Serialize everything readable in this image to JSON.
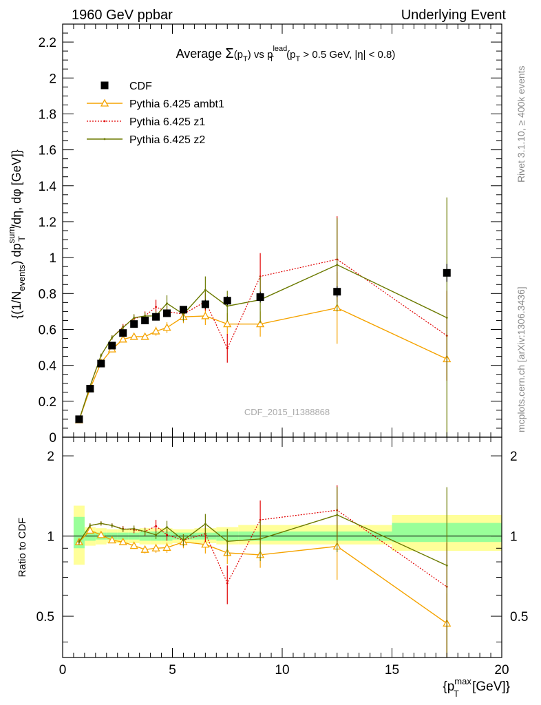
{
  "header": {
    "left": "1960 GeV ppbar",
    "right": "Underlying Event"
  },
  "side_labels": {
    "rivet": "Rivet 3.1.10, ≥ 400k events",
    "mcplots": "mcplots.cern.ch [arXiv:1306.3436]"
  },
  "watermark": "CDF_2015_I1388868",
  "colors": {
    "cdf": "#000000",
    "ambt1": "#f5a300",
    "z1": "#e00000",
    "z2": "#6b7a00",
    "band_inner": "#99ff99",
    "band_outer": "#ffff99"
  },
  "chart_data": [
    {
      "id": "main",
      "type": "scatter",
      "title": "Average Σ(p_T) vs p_T^lead (p_T > 0.5 GeV, |η| < 0.8)",
      "title_parts": {
        "pre": "Average ",
        "sigma": "Σ",
        "open": "(p",
        "sub_t": "T",
        "close": ")",
        "vs": " vs p",
        "sup_lead": "lead",
        "sub_t2": "T",
        "tail": " (p",
        "sub_t3": "T",
        "cuts": " > 0.5 GeV, |η| < 0.8)"
      },
      "ylabel": "{(1/N_events) dp_T^sum/dη, dφ [GeV]}",
      "ylabel_parts": {
        "a": "{(1/N",
        "sub_events": "events",
        "b": ") dp",
        "sup_sum": "sum",
        "sub_t": "T",
        "c": "/dη, dφ [GeV]}"
      },
      "xlim": [
        0,
        20
      ],
      "ylim": [
        0,
        2.3
      ],
      "yticks": [
        0,
        0.2,
        0.4,
        0.6,
        0.8,
        1,
        1.2,
        1.4,
        1.6,
        1.8,
        2,
        2.2
      ],
      "ytick_labels": [
        "0",
        "0.2",
        "0.4",
        "0.6",
        "0.8",
        "1",
        "1.2",
        "1.4",
        "1.6",
        "1.8",
        "2",
        "2.2"
      ],
      "legend_position": "top-left",
      "series": [
        {
          "name": "CDF",
          "style": "data",
          "x": [
            0.75,
            1.25,
            1.75,
            2.25,
            2.75,
            3.25,
            3.75,
            4.25,
            4.75,
            5.5,
            6.5,
            7.5,
            9.0,
            12.5,
            17.5
          ],
          "y": [
            0.1,
            0.27,
            0.41,
            0.51,
            0.58,
            0.63,
            0.65,
            0.67,
            0.69,
            0.71,
            0.74,
            0.76,
            0.78,
            0.81,
            0.915
          ],
          "yerr": [
            0.005,
            0.008,
            0.01,
            0.012,
            0.012,
            0.015,
            0.015,
            0.015,
            0.018,
            0.02,
            0.025,
            0.025,
            0.03,
            0.03,
            0.05
          ]
        },
        {
          "name": "Pythia 6.425 ambt1",
          "style": "ambt1",
          "x": [
            0.75,
            1.25,
            1.75,
            2.25,
            2.75,
            3.25,
            3.75,
            4.25,
            4.75,
            5.5,
            6.5,
            7.5,
            9.0,
            12.5,
            17.5
          ],
          "y": [
            0.095,
            0.27,
            0.415,
            0.49,
            0.545,
            0.56,
            0.56,
            0.59,
            0.61,
            0.67,
            0.675,
            0.63,
            0.63,
            0.72,
            0.435
          ],
          "yerr": [
            0.004,
            0.005,
            0.01,
            0.015,
            0.015,
            0.015,
            0.015,
            0.025,
            0.03,
            0.035,
            0.05,
            0.06,
            0.07,
            0.2,
            0.12
          ]
        },
        {
          "name": "Pythia 6.425 z1",
          "style": "z1",
          "x": [
            0.75,
            1.25,
            1.75,
            2.25,
            2.75,
            3.25,
            3.75,
            4.25,
            4.75,
            5.5,
            6.5,
            7.5,
            9.0,
            12.5,
            17.5
          ],
          "y": [
            0.095,
            0.285,
            0.455,
            0.555,
            0.615,
            0.66,
            0.675,
            0.725,
            0.7,
            0.685,
            0.755,
            0.495,
            0.895,
            0.99,
            0.565
          ],
          "yerr": [
            0.004,
            0.006,
            0.01,
            0.012,
            0.015,
            0.02,
            0.025,
            0.04,
            0.03,
            0.035,
            0.05,
            0.08,
            0.13,
            0.24,
            0.25
          ]
        },
        {
          "name": "Pythia 6.425 z2",
          "style": "z2",
          "x": [
            0.75,
            1.25,
            1.75,
            2.25,
            2.75,
            3.25,
            3.75,
            4.25,
            4.75,
            5.5,
            6.5,
            7.5,
            9.0,
            12.5,
            17.5
          ],
          "y": [
            0.095,
            0.285,
            0.455,
            0.555,
            0.61,
            0.665,
            0.675,
            0.675,
            0.745,
            0.685,
            0.82,
            0.73,
            0.765,
            0.96,
            0.665
          ],
          "yerr": [
            0.004,
            0.006,
            0.01,
            0.012,
            0.015,
            0.02,
            0.02,
            0.025,
            0.045,
            0.04,
            0.075,
            0.085,
            0.13,
            0.26,
            0.67
          ]
        }
      ]
    },
    {
      "id": "ratio",
      "type": "scatter",
      "ylabel": "Ratio to CDF",
      "xlabel": "{p_T^max [GeV]}",
      "xlabel_parts": {
        "a": "{p",
        "sup_max": "max",
        "sub_t": "T",
        "b": " [GeV]}"
      },
      "xlim": [
        0,
        20
      ],
      "ylim": [
        0.35,
        2.35
      ],
      "log_y": true,
      "xticks": [
        0,
        5,
        10,
        15,
        20
      ],
      "xtick_labels": [
        "0",
        "5",
        "10",
        "15",
        "20"
      ],
      "yticks": [
        0.5,
        1,
        2
      ],
      "ytick_labels": [
        "0.5",
        "1",
        "2"
      ],
      "bands": {
        "x_edges": [
          0.5,
          1.0,
          1.5,
          2.0,
          2.5,
          3.0,
          3.5,
          4.0,
          4.5,
          5.0,
          6.0,
          7.0,
          8.0,
          10.0,
          15.0,
          20.0
        ],
        "inner": [
          [
            0.9,
            1.18
          ],
          [
            0.96,
            1.04
          ],
          [
            0.97,
            1.03
          ],
          [
            0.97,
            1.03
          ],
          [
            0.97,
            1.03
          ],
          [
            0.97,
            1.03
          ],
          [
            0.96,
            1.04
          ],
          [
            0.96,
            1.04
          ],
          [
            0.96,
            1.04
          ],
          [
            0.97,
            1.03
          ],
          [
            0.97,
            1.03
          ],
          [
            0.96,
            1.04
          ],
          [
            0.96,
            1.04
          ],
          [
            0.96,
            1.04
          ],
          [
            0.95,
            1.12
          ]
        ],
        "outer": [
          [
            0.78,
            1.3
          ],
          [
            0.92,
            1.08
          ],
          [
            0.93,
            1.07
          ],
          [
            0.94,
            1.06
          ],
          [
            0.94,
            1.06
          ],
          [
            0.94,
            1.06
          ],
          [
            0.93,
            1.07
          ],
          [
            0.93,
            1.07
          ],
          [
            0.93,
            1.07
          ],
          [
            0.94,
            1.06
          ],
          [
            0.94,
            1.07
          ],
          [
            0.93,
            1.08
          ],
          [
            0.93,
            1.1
          ],
          [
            0.93,
            1.1
          ],
          [
            0.88,
            1.2
          ]
        ]
      },
      "series": [
        {
          "name": "Pythia 6.425 ambt1",
          "style": "ambt1",
          "x": [
            0.75,
            1.25,
            1.75,
            2.25,
            2.75,
            3.25,
            3.75,
            4.25,
            4.75,
            5.5,
            6.5,
            7.5,
            9.0,
            12.5,
            17.5
          ],
          "y": [
            0.95,
            1.05,
            1.01,
            0.965,
            0.95,
            0.92,
            0.89,
            0.9,
            0.905,
            0.95,
            0.93,
            0.865,
            0.85,
            0.915,
            0.47
          ],
          "yerr": [
            0.02,
            0.02,
            0.02,
            0.02,
            0.025,
            0.025,
            0.03,
            0.035,
            0.04,
            0.05,
            0.07,
            0.08,
            0.09,
            0.23,
            0.14
          ]
        },
        {
          "name": "Pythia 6.425 z1",
          "style": "z1",
          "x": [
            0.75,
            1.25,
            1.75,
            2.25,
            2.75,
            3.25,
            3.75,
            4.25,
            4.75,
            5.5,
            6.5,
            7.5,
            9.0,
            12.5,
            17.5
          ],
          "y": [
            0.95,
            1.095,
            1.115,
            1.095,
            1.065,
            1.055,
            1.04,
            1.09,
            1.01,
            0.965,
            1.02,
            0.665,
            1.15,
            1.25,
            0.645
          ],
          "yerr": [
            0.02,
            0.02,
            0.02,
            0.02,
            0.025,
            0.03,
            0.035,
            0.06,
            0.05,
            0.05,
            0.07,
            0.11,
            0.21,
            0.3,
            0.3
          ]
        },
        {
          "name": "Pythia 6.425 z2",
          "style": "z2",
          "x": [
            0.75,
            1.25,
            1.75,
            2.25,
            2.75,
            3.25,
            3.75,
            4.25,
            4.75,
            5.5,
            6.5,
            7.5,
            9.0,
            12.5,
            17.5
          ],
          "y": [
            0.95,
            1.095,
            1.115,
            1.095,
            1.06,
            1.065,
            1.04,
            1.01,
            1.08,
            0.965,
            1.11,
            0.955,
            0.975,
            1.2,
            0.775
          ],
          "yerr": [
            0.02,
            0.02,
            0.02,
            0.02,
            0.025,
            0.03,
            0.03,
            0.035,
            0.06,
            0.05,
            0.1,
            0.11,
            0.17,
            0.33,
            0.75
          ]
        }
      ]
    }
  ]
}
